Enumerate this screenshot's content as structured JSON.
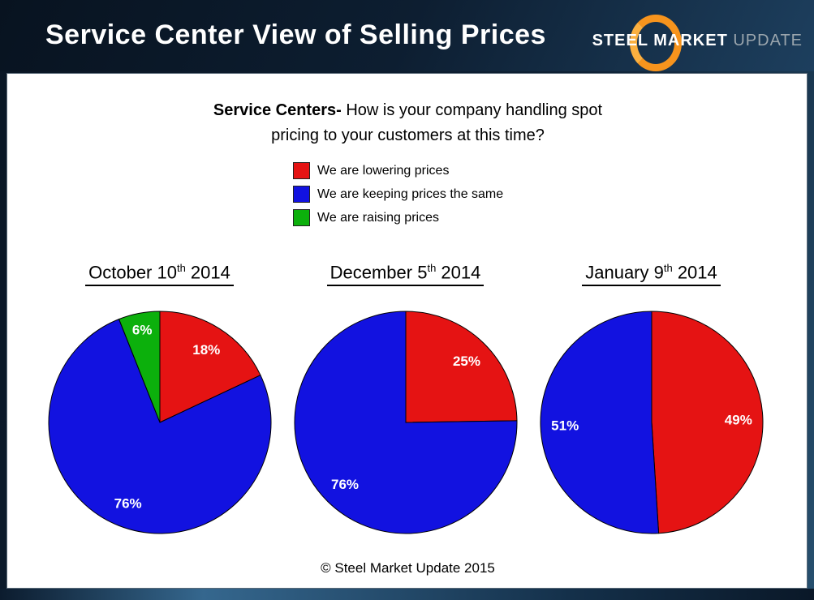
{
  "header": {
    "title": "Service Center View of Selling Prices",
    "logo": {
      "steel": "STEEL ",
      "market": "MARKET ",
      "update": "UPDATE"
    }
  },
  "question": {
    "bold": "Service Centers-",
    "line1_rest": " How is your company handling spot",
    "line2": "pricing to your customers at this time?"
  },
  "legend": [
    {
      "label": "We are lowering prices",
      "color": "#e51313"
    },
    {
      "label": "We are keeping prices the same",
      "color": "#1212e0"
    },
    {
      "label": "We are raising prices",
      "color": "#0cb00c"
    }
  ],
  "chart_data": [
    {
      "type": "pie",
      "title": {
        "prefix": "October 10",
        "sup": "th",
        "suffix": " 2014"
      },
      "direction": "clockwise",
      "start_angle_deg": 0,
      "slices": [
        {
          "name": "We are lowering prices",
          "value": 18,
          "label": "18%",
          "color": "#e51313"
        },
        {
          "name": "We are keeping prices the same",
          "value": 76,
          "label": "76%",
          "color": "#1212e0"
        },
        {
          "name": "We are raising prices",
          "value": 6,
          "label": "6%",
          "color": "#0cb00c"
        }
      ]
    },
    {
      "type": "pie",
      "title": {
        "prefix": "December 5",
        "sup": "th",
        "suffix": " 2014"
      },
      "direction": "clockwise",
      "start_angle_deg": 0,
      "slices": [
        {
          "name": "We are lowering prices",
          "value": 25,
          "label": "25%",
          "color": "#e51313"
        },
        {
          "name": "We are keeping prices the same",
          "value": 76,
          "label": "76%",
          "color": "#1212e0"
        }
      ]
    },
    {
      "type": "pie",
      "title": {
        "prefix": "January 9",
        "sup": "th",
        "suffix": " 2014"
      },
      "direction": "clockwise",
      "start_angle_deg": 0,
      "slices": [
        {
          "name": "We are lowering prices",
          "value": 49,
          "label": "49%",
          "color": "#e51313"
        },
        {
          "name": "We are keeping prices the same",
          "value": 51,
          "label": "51%",
          "color": "#1212e0"
        }
      ]
    }
  ],
  "footer": {
    "copyright": "© Steel Market Update 2015"
  },
  "colors": {
    "red": "#e51313",
    "blue": "#1212e0",
    "green": "#0cb00c",
    "header_navy": "#0d1e31",
    "accent_orange": "#f7941d"
  }
}
